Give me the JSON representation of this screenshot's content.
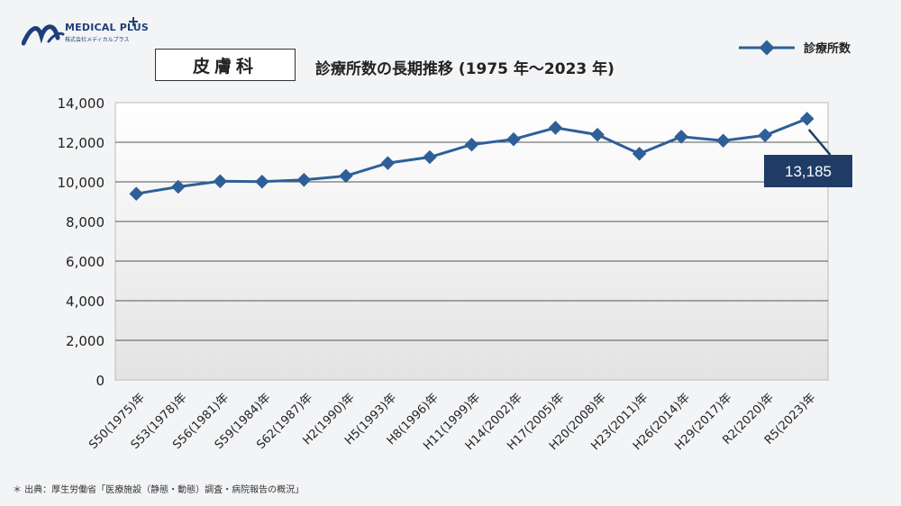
{
  "logo": {
    "name": "MEDICAL PLUS",
    "sub": "株式会社メディカルプラス"
  },
  "header": {
    "department": "皮膚科",
    "title": "診療所数の長期推移 (1975 年～2023 年)"
  },
  "footnote": "＊ 出典：厚生労働省「医療施設（静態・動態）調査・病院報告の概況」",
  "colors": {
    "series": "#2e5f98",
    "callout": "#1f3b66"
  },
  "chart_data": {
    "type": "line",
    "title": "",
    "xlabel": "",
    "ylabel": "",
    "ylim": [
      0,
      14000
    ],
    "yticks": [
      "14,000",
      "12,000",
      "10,000",
      "8,000",
      "6,000",
      "4,000",
      "2,000",
      "0"
    ],
    "grid": true,
    "legend_position": "top-right",
    "categories": [
      "S50(1975)年",
      "S53(1978)年",
      "S56(1981)年",
      "S59(1984)年",
      "S62(1987)年",
      "H2(1990)年",
      "H5(1993)年",
      "H8(1996)年",
      "H11(1999)年",
      "H14(2002)年",
      "H17(2005)年",
      "H20(2008)年",
      "H23(2011)年",
      "H26(2014)年",
      "H29(2017)年",
      "R2(2020)年",
      "R5(2023)年"
    ],
    "series": [
      {
        "name": "診療所数",
        "values": [
          9400,
          9750,
          10030,
          10010,
          10100,
          10300,
          10950,
          11250,
          11880,
          12150,
          12730,
          12380,
          11420,
          12280,
          12080,
          12350,
          13185
        ]
      }
    ],
    "callout": {
      "index": 16,
      "label": "13,185"
    }
  }
}
